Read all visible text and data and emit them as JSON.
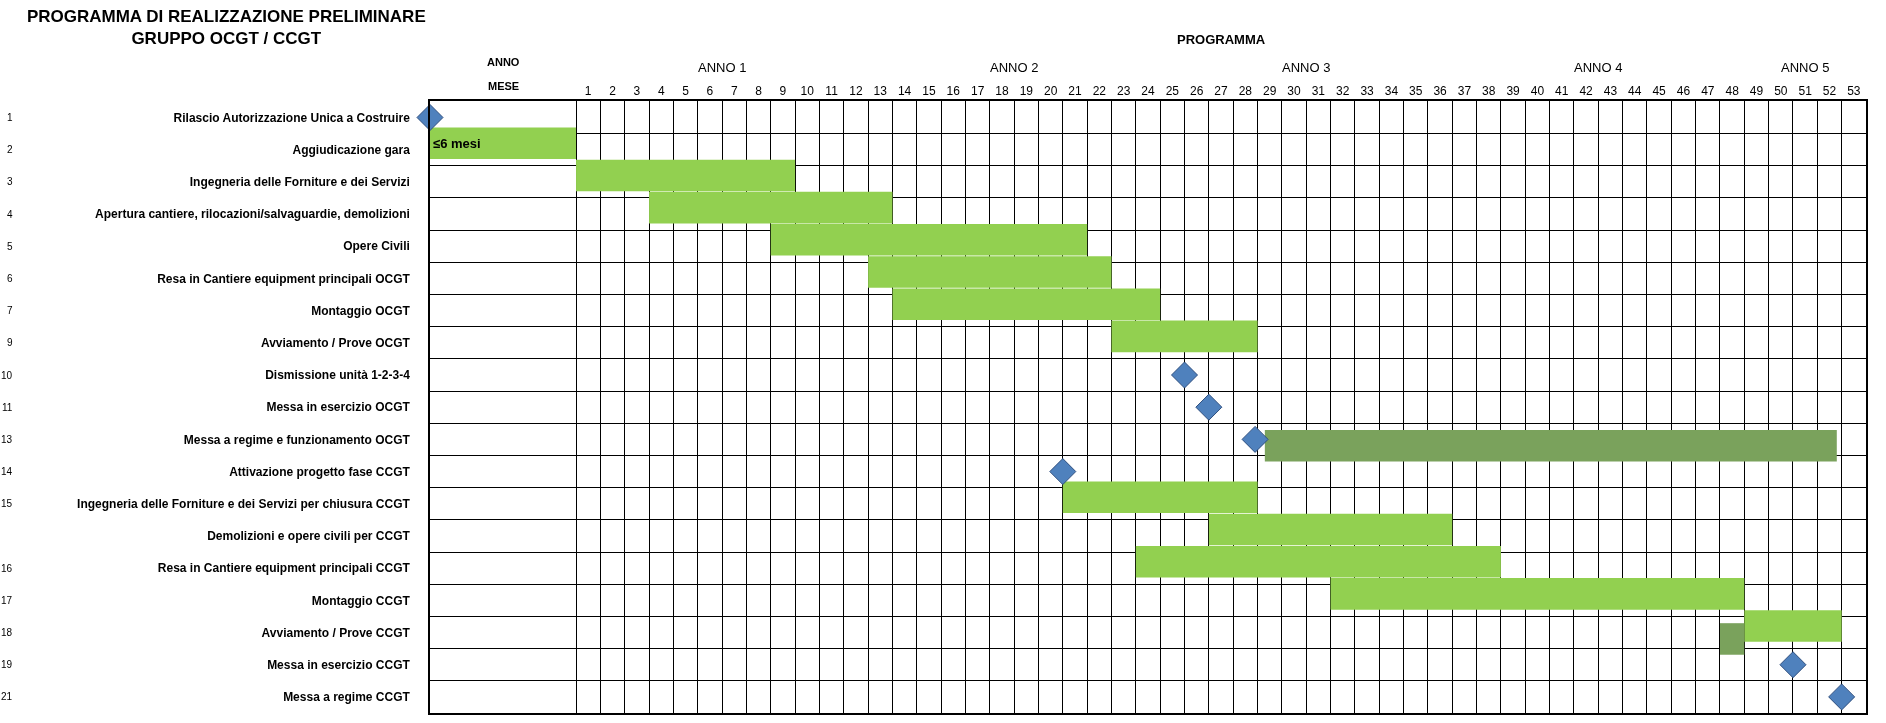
{
  "chart_data": {
    "type": "bar",
    "orientation": "horizontal",
    "title": "PROGRAMMA DI REALIZZAZIONE PRELIMINARE\nGRUPPO OCGT / CCGT",
    "categories": [
      "Rilascio Autorizzazione Unica a Costruire",
      "Aggiudicazione gara",
      "Ingegneria delle Forniture e dei Servizi",
      "Apertura cantiere, rilocazioni/salvaguardie, demolizioni",
      "Opere Civili",
      "Resa in Cantiere equipment principali OCGT",
      "Montaggio OCGT",
      "Avviamento / Prove OCGT",
      "Dismissione unità 1-2-3-4",
      "Messa in esercizio OCGT",
      "Messa a regime e funzionamento OCGT",
      "Attivazione progetto fase CCGT",
      "Ingegneria delle Forniture e dei Servizi per chiusura CCGT",
      "Demolizioni e opere civili per CCGT",
      "Resa in Cantiere equipment principali CCGT",
      "Montaggio CCGT",
      "Avviamento / Prove CCGT",
      "Messa in esercizio CCGT",
      "Messa a regime CCGT"
    ],
    "y2_categories": [
      "1",
      "2",
      "3",
      "4",
      "5",
      "6",
      "7",
      "9",
      "10",
      "11",
      "13",
      "14",
      "15",
      null,
      "16",
      "17",
      "18",
      "19",
      "21"
    ],
    "series": [
      {
        "color": "#92d050",
        "values": [
          null,
          6,
          9,
          10,
          13,
          10,
          11,
          6,
          null,
          null,
          null,
          null,
          8,
          10,
          15,
          17,
          4,
          null,
          null
        ],
        "base": [
          null,
          -5.5,
          0.5,
          3.5,
          8.5,
          12.5,
          13.5,
          22.5,
          null,
          null,
          null,
          null,
          20.5,
          26.5,
          23.5,
          31.5,
          48.5,
          null,
          null
        ],
        "value_labels": [
          null,
          "≤6 mesi",
          null,
          null,
          null,
          null,
          null,
          null,
          null,
          null,
          null,
          null,
          null,
          null,
          null,
          null,
          null,
          null,
          null
        ]
      },
      {
        "color": "#7aa25c",
        "values": [
          null,
          null,
          null,
          null,
          null,
          null,
          null,
          null,
          null,
          null,
          23.5,
          null,
          null,
          null,
          null,
          null,
          1,
          null,
          null
        ],
        "base": [
          null,
          null,
          null,
          null,
          null,
          null,
          null,
          null,
          null,
          null,
          28.8,
          null,
          null,
          null,
          null,
          null,
          47.5,
          null,
          null
        ]
      },
      {
        "type": "scatter",
        "marker": "diamond",
        "color": "#4f81bd",
        "values": [
          -5.5,
          null,
          null,
          null,
          null,
          null,
          null,
          null,
          25.5,
          26.5,
          28.4,
          20.5,
          null,
          null,
          null,
          null,
          null,
          50.5,
          52.5
        ]
      }
    ],
    "xlim": [
      -5.5,
      53.5
    ],
    "xticks": [
      1,
      2,
      3,
      4,
      5,
      6,
      7,
      8,
      9,
      10,
      11,
      12,
      13,
      14,
      15,
      16,
      17,
      18,
      19,
      20,
      21,
      22,
      23,
      24,
      25,
      26,
      27,
      28,
      29,
      30,
      31,
      32,
      33,
      34,
      35,
      36,
      37,
      38,
      39,
      40,
      41,
      42,
      43,
      44,
      45,
      46,
      47,
      48,
      49,
      50,
      51,
      52,
      53
    ],
    "annotations": [
      "ANNO",
      "MESE",
      "PROGRAMMA",
      "ANNO 1",
      "ANNO 2",
      "ANNO 3",
      "ANNO 4",
      "ANNO 5"
    ],
    "grid": true
  }
}
